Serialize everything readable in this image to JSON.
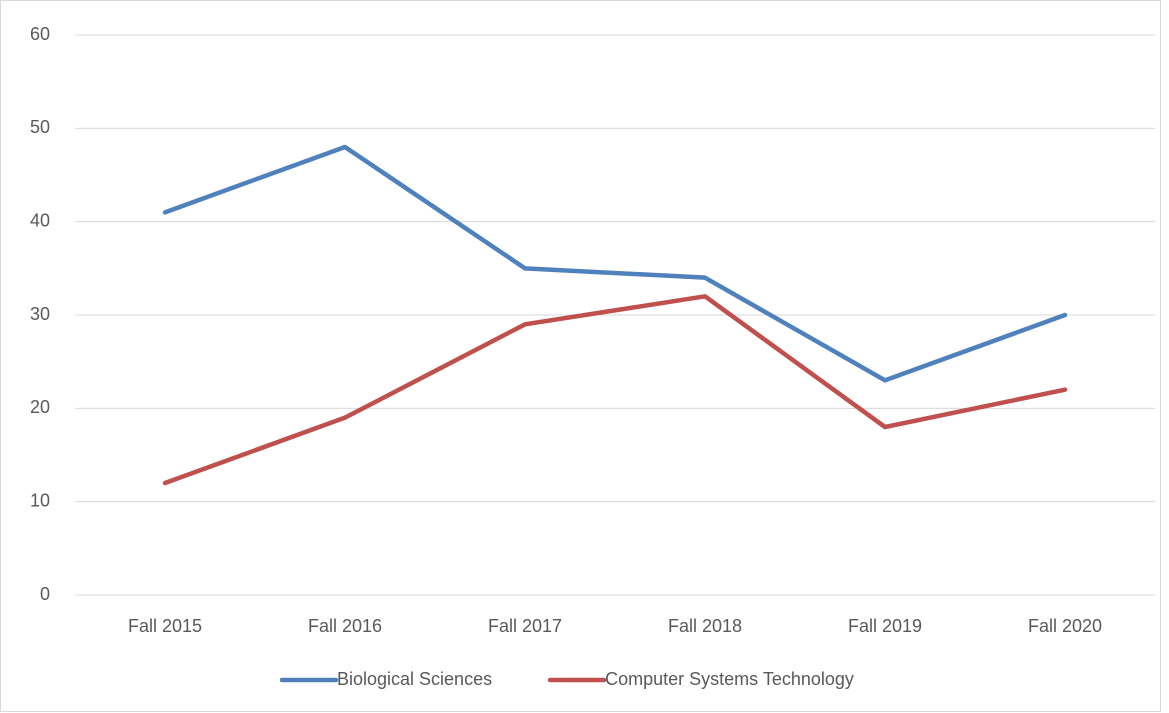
{
  "chart_data": {
    "type": "line",
    "categories": [
      "Fall 2015",
      "Fall 2016",
      "Fall 2017",
      "Fall 2018",
      "Fall 2019",
      "Fall 2020"
    ],
    "series": [
      {
        "name": "Biological Sciences",
        "color": "#4f81bd",
        "values": [
          41,
          48,
          35,
          34,
          23,
          30
        ]
      },
      {
        "name": "Computer Systems Technology",
        "color": "#c0504d",
        "values": [
          12,
          19,
          29,
          32,
          18,
          22
        ]
      }
    ],
    "ylim": [
      0,
      60
    ],
    "yticks": [
      0,
      10,
      20,
      30,
      40,
      50,
      60
    ],
    "grid": true,
    "legend": "bottom"
  }
}
